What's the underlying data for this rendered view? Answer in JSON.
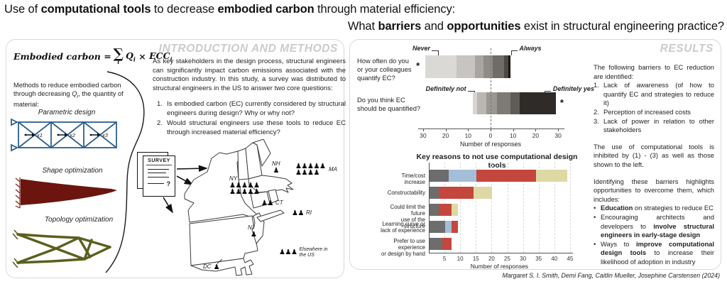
{
  "icons": {
    "person_glyph": "♟"
  },
  "title": {
    "line1": [
      {
        "t": "Use of "
      },
      {
        "b": "computational tools"
      },
      {
        "t": " to decrease "
      },
      {
        "b": "embodied carbon"
      },
      {
        "t": " through material efficiency:"
      }
    ],
    "line2": [
      {
        "t": "What "
      },
      {
        "b": "barriers"
      },
      {
        "t": " and "
      },
      {
        "b": "opportunities"
      },
      {
        "t": " exist in structural engineering practice?"
      }
    ]
  },
  "intro_panel": {
    "section_title": "INTRODUCTION AND METHODS",
    "equation": {
      "lhs": "Embodied carbon",
      "equals": "=",
      "sigma": "∑",
      "sigma_sub": "i",
      "q": "Q",
      "q_sub": "i",
      "times": "×",
      "ecc": "ECC",
      "ecc_sub": "i"
    },
    "methods_note": [
      {
        "t": "Methods to reduce embodied carbon through decreasing "
      },
      {
        "i": "Q"
      },
      {
        "s": "i"
      },
      {
        "t": ", the quantity of material:"
      }
    ],
    "method_labels": [
      "Parametric design",
      "Shape optimization",
      "Topology optimization"
    ],
    "truss_labels": [
      "x1",
      "x2",
      "x3"
    ],
    "paragraph": "As key stakeholders in the design process, structural engineers can significantly impact carbon emissions associated with the construction industry. In this study, a survey was distributed to structural engineers in the US to answer two core questions:",
    "questions": [
      "Is embodied carbon (EC) currently considered by structural engineers during design? Why or why not?",
      "Would structural engineers use these tools to reduce EC through increased material efficiency?"
    ],
    "survey_doc": {
      "title": "SURVEY",
      "question_mark": "?"
    },
    "map": {
      "states": [
        {
          "label": "NY",
          "count": 10
        },
        {
          "label": "NH",
          "count": 1
        },
        {
          "label": "MA",
          "count": 9
        },
        {
          "label": "CT",
          "count": 2
        },
        {
          "label": "RI",
          "count": 2
        },
        {
          "label": "NJ",
          "count": 1
        },
        {
          "label": "DC",
          "count": 1
        },
        {
          "label": "Elsewhere in\nthe US",
          "count": 3
        }
      ]
    }
  },
  "results_panel": {
    "section_title": "RESULTS",
    "barriers_intro": "The following barriers to EC reduction are identified:",
    "barriers": [
      "Lack of awareness (of how to quantify EC and strategies to reduce it)",
      "Perception of increased costs",
      "Lack of power in relation to other stakeholders"
    ],
    "inhibited_text": "The use of computational tools is inhibited by (1) - (3) as well as those shown to the left.",
    "opportunities_intro": "Identifying these barriers highlights opportunities to overcome them, which includes:",
    "opportunities": [
      [
        {
          "b": "Education"
        },
        {
          "t": " on strategies to reduce EC"
        }
      ],
      [
        {
          "t": "Encouraging architects and developers to "
        },
        {
          "b": "involve structural engineers in early-stage design"
        }
      ],
      [
        {
          "t": "Ways to "
        },
        {
          "b": "improve computational design tools"
        },
        {
          "t": " to increase their likelihood of adoption in industry"
        }
      ]
    ]
  },
  "chart_data": [
    {
      "type": "diverging_stacked_bar",
      "title": "",
      "xlabel": "Number of responses",
      "xticks": [
        -30,
        -20,
        -10,
        0,
        10,
        20,
        30
      ],
      "xtick_labels": [
        "30",
        "20",
        "10",
        "0",
        "10",
        "20",
        "30"
      ],
      "axis_range": [
        -33,
        33
      ],
      "zero_line": "dashed",
      "questions": [
        {
          "label": "How often do you or your colleagues quantify EC?",
          "label_lines": [
            "How often do you",
            "or your colleagues",
            "quantify EC?"
          ],
          "significance": "*",
          "significance_side": "left",
          "left_anchor_label": "Never",
          "right_anchor_label": "Always",
          "start": -29,
          "segments": [
            {
              "value": 14,
              "color": "#dbd9d6"
            },
            {
              "value": 8,
              "color": "#c7c4c1"
            },
            {
              "value": 4,
              "color": "#a9a5a1"
            },
            {
              "value": 4,
              "color": "#8f8b86"
            },
            {
              "value": 5,
              "color": "#6f6b66"
            },
            {
              "value": 2,
              "color": "#4c4843"
            },
            {
              "value": 1,
              "color": "#1a1714"
            }
          ]
        },
        {
          "label": "Do you think EC should be quantified?",
          "label_lines": [
            "Do you think EC",
            "should be quantified?"
          ],
          "significance": "*",
          "significance_side": "right",
          "left_anchor_label": "Definitely not",
          "right_anchor_label": "Definitely yes",
          "start": -8,
          "segments": [
            {
              "value": 2,
              "color": "#d7d5d2"
            },
            {
              "value": 4,
              "color": "#bab7b3"
            },
            {
              "value": 5,
              "color": "#9a9692"
            },
            {
              "value": 6,
              "color": "#7e7a75"
            },
            {
              "value": 4,
              "color": "#5f5b56"
            },
            {
              "value": 16,
              "color": "#2e2b28"
            }
          ]
        }
      ]
    },
    {
      "type": "stacked_bar_horizontal",
      "title": "Key reasons to not use computational design tools",
      "xlabel": "Number of responses",
      "xticks": [
        5,
        10,
        15,
        20,
        25,
        30,
        35,
        40,
        45
      ],
      "grid": "dashed-vertical",
      "categories": [
        {
          "label_lines": [
            "Time/cost increase"
          ],
          "segments": [
            {
              "color": "#6d6d6d",
              "value": 6
            },
            {
              "color": "#a5bed8",
              "value": 9
            },
            {
              "color": "#c4473e",
              "value": 19
            },
            {
              "color": "#ded9a3",
              "value": 10
            }
          ]
        },
        {
          "label_lines": [
            "Constructability"
          ],
          "segments": [
            {
              "color": "#6d6d6d",
              "value": 3
            },
            {
              "color": "#c4473e",
              "value": 11
            },
            {
              "color": "#ded9a3",
              "value": 6
            }
          ]
        },
        {
          "label_lines": [
            "Could limit the future",
            "use of the structure"
          ],
          "segments": [
            {
              "color": "#6d6d6d",
              "value": 3
            },
            {
              "color": "#c4473e",
              "value": 4
            },
            {
              "color": "#ded9a3",
              "value": 2
            }
          ]
        },
        {
          "label_lines": [
            "Learning curve or",
            "lack of experience"
          ],
          "segments": [
            {
              "color": "#6d6d6d",
              "value": 5
            },
            {
              "color": "#a5bed8",
              "value": 2
            },
            {
              "color": "#c4473e",
              "value": 2
            }
          ]
        },
        {
          "label_lines": [
            "Prefer to use experience",
            "or design by hand"
          ],
          "segments": [
            {
              "color": "#6d6d6d",
              "value": 4
            },
            {
              "color": "#c4473e",
              "value": 3
            }
          ]
        }
      ]
    }
  ],
  "footer": "Margaret S. I. Smith, Demi Fang, Caitlin Mueller, Josephine Carstensen (2024)"
}
